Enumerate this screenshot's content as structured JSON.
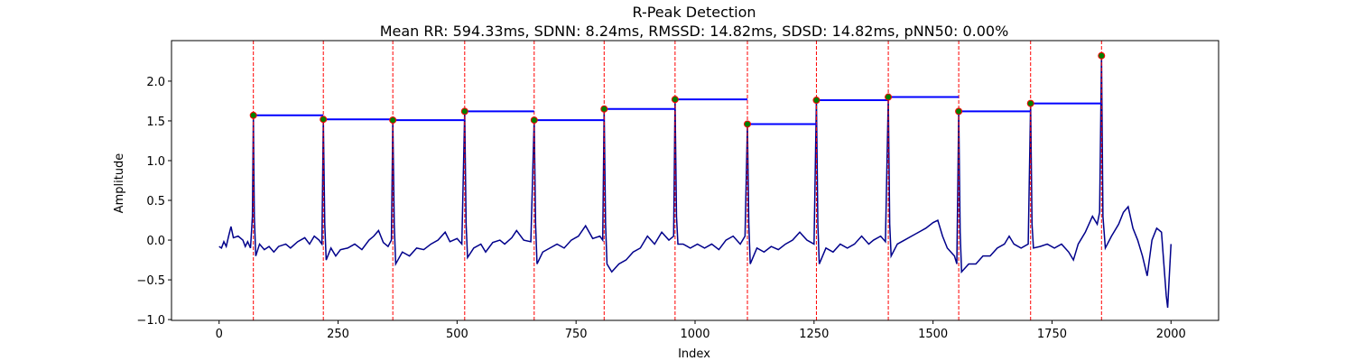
{
  "chart_data": {
    "type": "line",
    "title": "R-Peak Detection",
    "subtitle": "Mean RR: 594.33ms, SDNN: 8.24ms, RMSSD: 14.82ms, SDSD: 14.82ms, pNN50: 0.00%",
    "xlabel": "Index",
    "ylabel": "Amplitude",
    "xlim": [
      -100,
      2100
    ],
    "ylim": [
      -1.01,
      2.51
    ],
    "xticks": [
      0,
      250,
      500,
      750,
      1000,
      1250,
      1500,
      1750,
      2000
    ],
    "yticks": [
      {
        "value": -1,
        "label": "−1.0"
      },
      {
        "value": -0.5,
        "label": "−0.5"
      },
      {
        "value": 0,
        "label": "0.0"
      },
      {
        "value": 0.5,
        "label": "0.5"
      },
      {
        "value": 1,
        "label": "1.0"
      },
      {
        "value": 1.5,
        "label": "1.5"
      },
      {
        "value": 2,
        "label": "2.0"
      }
    ],
    "grid": false,
    "x": [
      0,
      5,
      10,
      15,
      20,
      25,
      30,
      40,
      50,
      55,
      60,
      66,
      70,
      72,
      74,
      77,
      85,
      95,
      105,
      115,
      125,
      140,
      150,
      165,
      180,
      190,
      200,
      210,
      216,
      219,
      222,
      225,
      235,
      245,
      255,
      270,
      285,
      300,
      315,
      325,
      335,
      345,
      355,
      362,
      365,
      368,
      371,
      385,
      400,
      415,
      430,
      445,
      460,
      475,
      485,
      500,
      510,
      516,
      519,
      522,
      535,
      550,
      560,
      575,
      590,
      600,
      615,
      625,
      640,
      655,
      662,
      665,
      668,
      680,
      695,
      710,
      725,
      740,
      755,
      770,
      785,
      800,
      806,
      809,
      812,
      815,
      825,
      840,
      855,
      870,
      885,
      900,
      915,
      930,
      945,
      955,
      958,
      961,
      964,
      975,
      990,
      1005,
      1020,
      1035,
      1050,
      1065,
      1080,
      1095,
      1105,
      1110,
      1113,
      1116,
      1130,
      1145,
      1160,
      1175,
      1190,
      1205,
      1220,
      1235,
      1250,
      1255,
      1258,
      1261,
      1275,
      1290,
      1305,
      1320,
      1335,
      1350,
      1365,
      1375,
      1390,
      1400,
      1406,
      1409,
      1412,
      1425,
      1440,
      1455,
      1470,
      1485,
      1500,
      1510,
      1520,
      1530,
      1545,
      1550,
      1554,
      1557,
      1560,
      1575,
      1590,
      1605,
      1620,
      1635,
      1650,
      1660,
      1670,
      1685,
      1700,
      1705,
      1708,
      1711,
      1725,
      1740,
      1755,
      1770,
      1785,
      1795,
      1805,
      1820,
      1835,
      1845,
      1850,
      1854,
      1857,
      1862,
      1875,
      1890,
      1900,
      1910,
      1920,
      1930,
      1940,
      1950,
      1960,
      1970,
      1980,
      1985,
      1990,
      1993,
      1996,
      2000
    ],
    "series": [
      {
        "color": "#00008b",
        "values": [
          -0.08,
          -0.1,
          -0.02,
          -0.08,
          0.05,
          0.17,
          0.03,
          0.05,
          0,
          -0.08,
          -0.02,
          -0.1,
          0.3,
          1.57,
          0.3,
          -0.2,
          -0.05,
          -0.12,
          -0.08,
          -0.15,
          -0.08,
          -0.05,
          -0.1,
          -0.02,
          0.03,
          -0.05,
          0.05,
          0,
          -0.05,
          1.52,
          0.2,
          -0.25,
          -0.1,
          -0.2,
          -0.12,
          -0.1,
          -0.05,
          -0.12,
          0,
          0.05,
          0.12,
          -0.03,
          -0.08,
          0,
          1.51,
          0.2,
          -0.3,
          -0.15,
          -0.2,
          -0.1,
          -0.12,
          -0.05,
          0,
          0.1,
          -0.02,
          0.02,
          -0.05,
          1.62,
          0.2,
          -0.22,
          -0.1,
          -0.05,
          -0.15,
          -0.03,
          0,
          -0.05,
          0.03,
          0.12,
          0,
          -0.02,
          1.51,
          0.2,
          -0.3,
          -0.15,
          -0.1,
          -0.05,
          -0.1,
          0,
          0.05,
          0.18,
          0.02,
          0.05,
          0,
          1.65,
          0.2,
          -0.3,
          -0.4,
          -0.3,
          -0.25,
          -0.15,
          -0.1,
          0.05,
          -0.05,
          0.1,
          0,
          0.05,
          1.77,
          0.3,
          -0.05,
          -0.05,
          -0.1,
          -0.05,
          -0.1,
          -0.05,
          -0.12,
          0,
          0.05,
          -0.05,
          0.05,
          1.46,
          0.2,
          -0.3,
          -0.1,
          -0.15,
          -0.08,
          -0.12,
          -0.05,
          0,
          0.1,
          0,
          -0.05,
          1.76,
          0.2,
          -0.3,
          -0.1,
          -0.15,
          -0.05,
          -0.1,
          -0.05,
          0.05,
          -0.05,
          0,
          0.05,
          -0.02,
          1.8,
          0.2,
          -0.2,
          -0.05,
          0,
          0.05,
          0.1,
          0.15,
          0.22,
          0.25,
          0.05,
          -0.1,
          -0.2,
          -0.3,
          1.62,
          0.1,
          -0.4,
          -0.3,
          -0.3,
          -0.2,
          -0.2,
          -0.1,
          -0.05,
          0.05,
          -0.05,
          -0.1,
          -0.05,
          1.72,
          0.2,
          -0.1,
          -0.08,
          -0.05,
          -0.1,
          -0.05,
          -0.15,
          -0.25,
          -0.05,
          0.1,
          0.3,
          0.2,
          0.35,
          2.32,
          0.3,
          -0.1,
          0.05,
          0.2,
          0.35,
          0.42,
          0.15,
          0,
          -0.2,
          -0.45,
          0,
          0.15,
          0.1,
          -0.3,
          -0.7,
          -0.85,
          -0.5,
          -0.05
        ]
      }
    ],
    "peaks": {
      "x": [
        72,
        219,
        365,
        516,
        662,
        809,
        958,
        1110,
        1255,
        1406,
        1554,
        1705,
        1854
      ],
      "values": [
        1.57,
        1.52,
        1.51,
        1.62,
        1.51,
        1.65,
        1.77,
        1.46,
        1.76,
        1.8,
        1.62,
        1.72,
        2.32
      ],
      "color": "#008000",
      "edgecolor": "#ff0000",
      "vline_color": "#ff0000",
      "step_color": "#0000ff"
    }
  }
}
